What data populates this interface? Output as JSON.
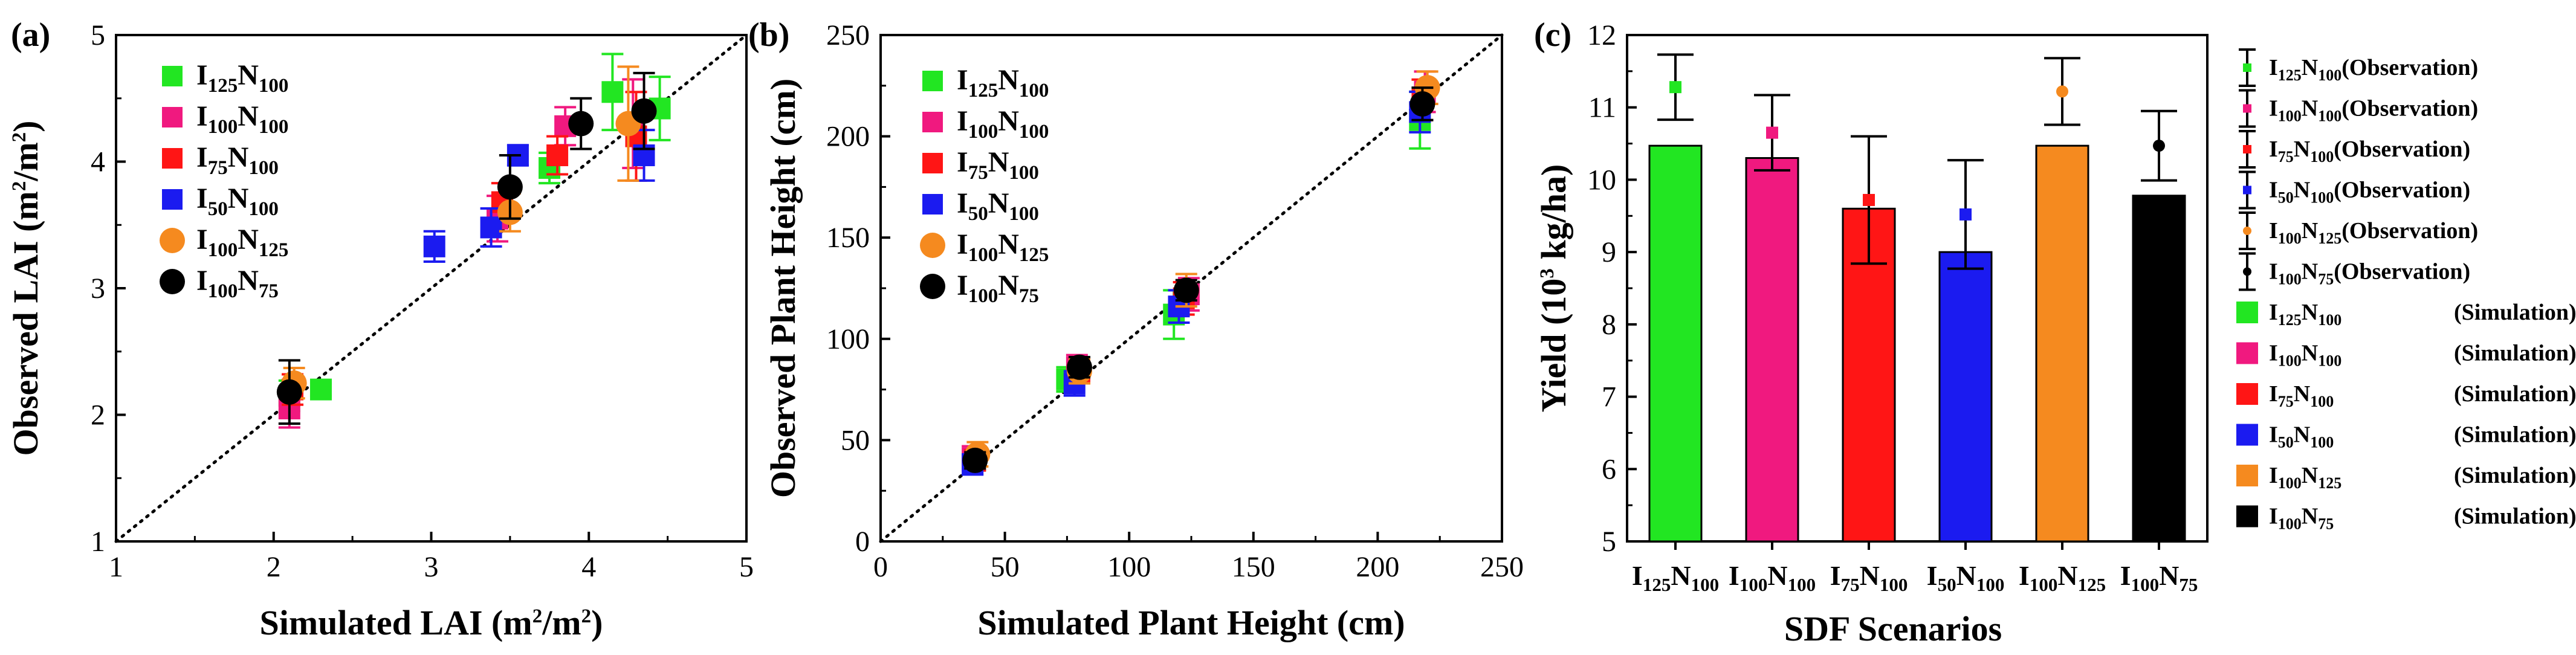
{
  "chart_data": [
    {
      "panel": "(a)",
      "type": "scatter",
      "xlabel": "Simulated LAI (m²/m²)",
      "ylabel": "Observed LAI (m²/m²)",
      "xlim": [
        1,
        5
      ],
      "ylim": [
        1,
        5
      ],
      "xticks": [
        "1",
        "2",
        "3",
        "4",
        "5"
      ],
      "yticks": [
        "1",
        "2",
        "3",
        "4",
        "5"
      ],
      "reference_line": "1:1 dotted",
      "legend_position": "top-left",
      "series": [
        {
          "label": {
            "a": "I",
            "s1": "125",
            "b": "N",
            "s2": "100"
          },
          "color": "#22e622",
          "marker": "square",
          "points": [
            {
              "x": 2.1,
              "y": 2.15,
              "err": 0.12
            },
            {
              "x": 2.3,
              "y": 2.2,
              "err": 0.05
            },
            {
              "x": 3.75,
              "y": 3.95,
              "err": 0.12
            },
            {
              "x": 4.15,
              "y": 4.55,
              "err": 0.3
            },
            {
              "x": 4.45,
              "y": 4.42,
              "err": 0.25
            }
          ]
        },
        {
          "label": {
            "a": "I",
            "s1": "100",
            "b": "N",
            "s2": "100"
          },
          "color": "#f0197f",
          "marker": "square",
          "points": [
            {
              "x": 2.1,
              "y": 2.05,
              "err": 0.15
            },
            {
              "x": 3.42,
              "y": 3.55,
              "err": 0.18
            },
            {
              "x": 3.85,
              "y": 4.28,
              "err": 0.15
            },
            {
              "x": 4.28,
              "y": 4.3,
              "err": 0.35
            }
          ]
        },
        {
          "label": {
            "a": "I",
            "s1": "75",
            "b": "N",
            "s2": "100"
          },
          "color": "#ff1515",
          "marker": "square",
          "points": [
            {
              "x": 2.12,
              "y": 2.2,
              "err": 0.12
            },
            {
              "x": 3.45,
              "y": 3.68,
              "err": 0.15
            },
            {
              "x": 3.8,
              "y": 4.05,
              "err": 0.15
            },
            {
              "x": 4.3,
              "y": 4.2,
              "err": 0.35
            }
          ]
        },
        {
          "label": {
            "a": "I",
            "s1": "50",
            "b": "N",
            "s2": "100"
          },
          "color": "#1b1bf0",
          "marker": "square",
          "points": [
            {
              "x": 3.02,
              "y": 3.33,
              "err": 0.12
            },
            {
              "x": 3.38,
              "y": 3.48,
              "err": 0.15
            },
            {
              "x": 3.55,
              "y": 4.05,
              "err": 0.08
            },
            {
              "x": 4.35,
              "y": 4.05,
              "err": 0.2
            }
          ]
        },
        {
          "label": {
            "a": "I",
            "s1": "100",
            "b": "N",
            "s2": "125"
          },
          "color": "#f58a1f",
          "marker": "circle",
          "points": [
            {
              "x": 2.13,
              "y": 2.25,
              "err": 0.12
            },
            {
              "x": 3.5,
              "y": 3.6,
              "err": 0.15
            },
            {
              "x": 4.25,
              "y": 4.3,
              "err": 0.45
            }
          ]
        },
        {
          "label": {
            "a": "I",
            "s1": "100",
            "b": "N",
            "s2": "75"
          },
          "color": "#000000",
          "marker": "circle",
          "points": [
            {
              "x": 2.1,
              "y": 2.18,
              "err": 0.25
            },
            {
              "x": 3.5,
              "y": 3.8,
              "err": 0.25
            },
            {
              "x": 3.95,
              "y": 4.3,
              "err": 0.2
            },
            {
              "x": 4.35,
              "y": 4.4,
              "err": 0.3
            }
          ]
        }
      ]
    },
    {
      "panel": "(b)",
      "type": "scatter",
      "xlabel": "Simulated Plant Height (cm)",
      "ylabel": "Observed Plant Height (cm)",
      "xlim": [
        0,
        250
      ],
      "ylim": [
        0,
        250
      ],
      "xticks": [
        "0",
        "50",
        "100",
        "150",
        "200",
        "250"
      ],
      "yticks": [
        "0",
        "50",
        "100",
        "150",
        "200",
        "250"
      ],
      "reference_line": "1:1 dotted",
      "legend_position": "top-left",
      "series": [
        {
          "label": {
            "a": "I",
            "s1": "125",
            "b": "N",
            "s2": "100"
          },
          "color": "#22e622",
          "marker": "square",
          "points": [
            {
              "x": 38,
              "y": 40,
              "err": 5
            },
            {
              "x": 75,
              "y": 80,
              "err": 6
            },
            {
              "x": 118,
              "y": 112,
              "err": 12
            },
            {
              "x": 217,
              "y": 208,
              "err": 14
            }
          ]
        },
        {
          "label": {
            "a": "I",
            "s1": "100",
            "b": "N",
            "s2": "100"
          },
          "color": "#f0197f",
          "marker": "square",
          "points": [
            {
              "x": 37,
              "y": 41,
              "err": 6
            },
            {
              "x": 79,
              "y": 86,
              "err": 6
            },
            {
              "x": 124,
              "y": 122,
              "err": 8
            },
            {
              "x": 219,
              "y": 222,
              "err": 10
            }
          ]
        },
        {
          "label": {
            "a": "I",
            "s1": "75",
            "b": "N",
            "s2": "100"
          },
          "color": "#ff1515",
          "marker": "square",
          "points": [
            {
              "x": 38,
              "y": 40,
              "err": 5
            },
            {
              "x": 80,
              "y": 84,
              "err": 6
            },
            {
              "x": 122,
              "y": 120,
              "err": 8
            },
            {
              "x": 218,
              "y": 218,
              "err": 10
            }
          ]
        },
        {
          "label": {
            "a": "I",
            "s1": "50",
            "b": "N",
            "s2": "100"
          },
          "color": "#1b1bf0",
          "marker": "square",
          "points": [
            {
              "x": 37,
              "y": 38,
              "err": 5
            },
            {
              "x": 78,
              "y": 78,
              "err": 6
            },
            {
              "x": 120,
              "y": 116,
              "err": 8
            },
            {
              "x": 217,
              "y": 212,
              "err": 10
            }
          ]
        },
        {
          "label": {
            "a": "I",
            "s1": "100",
            "b": "N",
            "s2": "125"
          },
          "color": "#f58a1f",
          "marker": "circle",
          "points": [
            {
              "x": 39,
              "y": 43,
              "err": 6
            },
            {
              "x": 80,
              "y": 84,
              "err": 6
            },
            {
              "x": 123,
              "y": 124,
              "err": 8
            },
            {
              "x": 220,
              "y": 224,
              "err": 8
            }
          ]
        },
        {
          "label": {
            "a": "I",
            "s1": "100",
            "b": "N",
            "s2": "75"
          },
          "color": "#000000",
          "marker": "circle",
          "points": [
            {
              "x": 38,
              "y": 40,
              "err": 4
            },
            {
              "x": 80,
              "y": 86,
              "err": 5
            },
            {
              "x": 123,
              "y": 124,
              "err": 5
            },
            {
              "x": 218,
              "y": 216,
              "err": 8
            }
          ]
        }
      ]
    },
    {
      "panel": "(c)",
      "type": "bar",
      "xlabel": "SDF Scenarios",
      "ylabel": "Yield (10³ kg/ha)",
      "ylim": [
        5,
        12
      ],
      "yticks": [
        "5",
        "6",
        "7",
        "8",
        "9",
        "10",
        "11",
        "12"
      ],
      "legend_position": "right",
      "categories": [
        {
          "a": "I",
          "s1": "125",
          "b": "N",
          "s2": "100"
        },
        {
          "a": "I",
          "s1": "100",
          "b": "N",
          "s2": "100"
        },
        {
          "a": "I",
          "s1": "75",
          "b": "N",
          "s2": "100"
        },
        {
          "a": "I",
          "s1": "50",
          "b": "N",
          "s2": "100"
        },
        {
          "a": "I",
          "s1": "100",
          "b": "N",
          "s2": "125"
        },
        {
          "a": "I",
          "s1": "100",
          "b": "N",
          "s2": "75"
        }
      ],
      "colors": [
        "#22e622",
        "#f0197f",
        "#ff1515",
        "#1b1bf0",
        "#f58a1f",
        "#000000"
      ],
      "simulation": [
        10.47,
        10.3,
        9.6,
        9.0,
        10.47,
        9.78
      ],
      "observation": [
        11.28,
        10.65,
        9.72,
        9.52,
        11.22,
        10.47
      ],
      "observation_error": [
        0.45,
        0.52,
        0.88,
        0.75,
        0.46,
        0.48
      ],
      "observation_marker": [
        "square",
        "square",
        "square",
        "square",
        "circle",
        "circle"
      ],
      "legend_observation_suffix": "(Observation)",
      "legend_simulation_suffix": "(Simulation)"
    }
  ]
}
